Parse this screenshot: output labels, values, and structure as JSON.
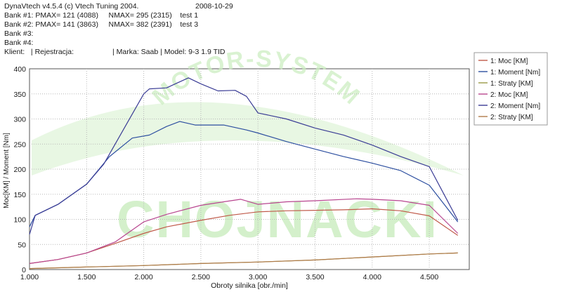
{
  "header": {
    "app": "DynaVtech v4.5.4 (c) Vtech Tuning 2004.",
    "date": "2008-10-29",
    "bank1": "Bank #1: PMAX= 121 (4088)     NMAX= 295 (2315)    test 1",
    "bank2": "Bank #2: PMAX= 141 (3863)     NMAX= 382 (2391)    test 3",
    "bank3": "Bank #3:",
    "bank4": "Bank #4:",
    "client": "Klient:   | Rejestracja:",
    "car": "| Marka: Saab | Model: 9-3 1.9 TID"
  },
  "watermark": {
    "big": "CHOJNACKI",
    "arc": "MOTOR-SYSTEM",
    "color": "#cdeec2"
  },
  "colors": {
    "moc1": "#c05a4a",
    "moment1": "#2d4fa0",
    "straty1": "#9a9a45",
    "moc2": "#b8468f",
    "moment2": "#3a3c95",
    "straty2": "#b07a4a",
    "grid": "#b8b8b8"
  },
  "chart_data": {
    "type": "line",
    "xlabel": "Obroty silnika [obr./min]",
    "ylabel": "Moc[KM] / Moment [Nm]",
    "xlim": [
      1000,
      4850
    ],
    "ylim": [
      0,
      400
    ],
    "x_ticks": [
      1000,
      1500,
      2000,
      2500,
      3000,
      3500,
      4000,
      4500
    ],
    "x_tick_labels": [
      "1.000",
      "1.500",
      "2.000",
      "2.500",
      "3.000",
      "3.500",
      "4.000",
      "4.500"
    ],
    "y_ticks": [
      0,
      50,
      100,
      150,
      200,
      250,
      300,
      350,
      400
    ],
    "grid": true,
    "legend_position": "right",
    "series": [
      {
        "name": "1: Moc [KM]",
        "color_key": "moc1",
        "points": [
          [
            1000,
            12
          ],
          [
            1250,
            20
          ],
          [
            1500,
            33
          ],
          [
            1750,
            52
          ],
          [
            2000,
            72
          ],
          [
            2200,
            85
          ],
          [
            2500,
            98
          ],
          [
            2750,
            108
          ],
          [
            3000,
            115
          ],
          [
            3250,
            117
          ],
          [
            3500,
            118
          ],
          [
            3750,
            119
          ],
          [
            4000,
            121
          ],
          [
            4250,
            117
          ],
          [
            4500,
            107
          ],
          [
            4750,
            68
          ]
        ]
      },
      {
        "name": "1: Moment [Nm]",
        "color_key": "moment1",
        "points": [
          [
            1000,
            85
          ],
          [
            1050,
            108
          ],
          [
            1250,
            130
          ],
          [
            1500,
            170
          ],
          [
            1700,
            225
          ],
          [
            1900,
            262
          ],
          [
            2050,
            268
          ],
          [
            2200,
            285
          ],
          [
            2315,
            295
          ],
          [
            2450,
            288
          ],
          [
            2700,
            288
          ],
          [
            2900,
            278
          ],
          [
            3000,
            272
          ],
          [
            3250,
            255
          ],
          [
            3500,
            240
          ],
          [
            3750,
            225
          ],
          [
            4000,
            212
          ],
          [
            4250,
            197
          ],
          [
            4500,
            168
          ],
          [
            4750,
            95
          ]
        ]
      },
      {
        "name": "1: Straty [KM]",
        "color_key": "straty1",
        "points": [
          [
            1000,
            2
          ],
          [
            1500,
            5
          ],
          [
            2000,
            8
          ],
          [
            2500,
            12
          ],
          [
            3000,
            15
          ],
          [
            3500,
            19
          ],
          [
            4000,
            25
          ],
          [
            4500,
            31
          ],
          [
            4750,
            33
          ]
        ]
      },
      {
        "name": "2: Moc [KM]",
        "color_key": "moc2",
        "points": [
          [
            1000,
            12
          ],
          [
            1250,
            20
          ],
          [
            1500,
            33
          ],
          [
            1750,
            55
          ],
          [
            2000,
            95
          ],
          [
            2200,
            110
          ],
          [
            2500,
            128
          ],
          [
            2700,
            135
          ],
          [
            2850,
            140
          ],
          [
            3000,
            130
          ],
          [
            3250,
            135
          ],
          [
            3500,
            137
          ],
          [
            3863,
            141
          ],
          [
            4000,
            140
          ],
          [
            4250,
            137
          ],
          [
            4500,
            128
          ],
          [
            4750,
            72
          ]
        ]
      },
      {
        "name": "2: Moment [Nm]",
        "color_key": "moment2",
        "points": [
          [
            1000,
            70
          ],
          [
            1050,
            108
          ],
          [
            1250,
            130
          ],
          [
            1500,
            170
          ],
          [
            1650,
            210
          ],
          [
            1850,
            290
          ],
          [
            2000,
            350
          ],
          [
            2050,
            360
          ],
          [
            2200,
            362
          ],
          [
            2391,
            382
          ],
          [
            2500,
            370
          ],
          [
            2650,
            356
          ],
          [
            2800,
            357
          ],
          [
            2900,
            345
          ],
          [
            3000,
            312
          ],
          [
            3250,
            300
          ],
          [
            3500,
            282
          ],
          [
            3750,
            268
          ],
          [
            4000,
            248
          ],
          [
            4250,
            225
          ],
          [
            4500,
            205
          ],
          [
            4750,
            98
          ]
        ]
      },
      {
        "name": "2: Straty [KM]",
        "color_key": "straty2",
        "points": [
          [
            1000,
            2
          ],
          [
            1500,
            5
          ],
          [
            2000,
            8
          ],
          [
            2500,
            12
          ],
          [
            3000,
            15
          ],
          [
            3500,
            19
          ],
          [
            4000,
            25
          ],
          [
            4500,
            31
          ],
          [
            4750,
            33
          ]
        ]
      }
    ]
  }
}
